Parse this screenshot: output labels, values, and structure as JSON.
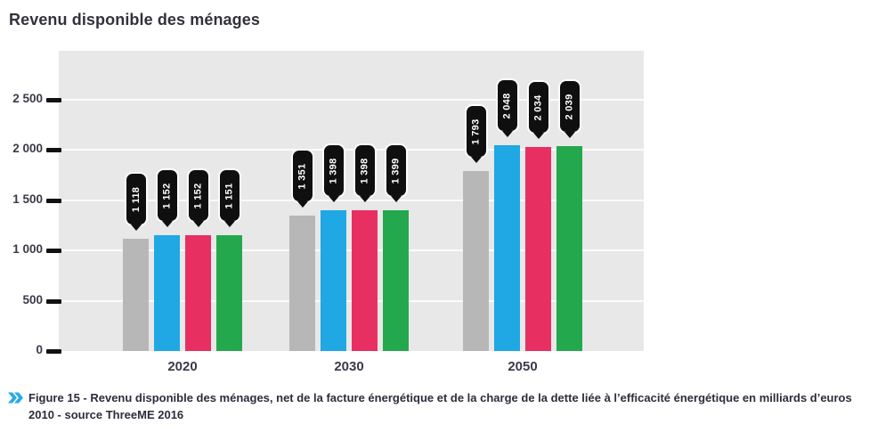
{
  "title": "Revenu disponible des ménages",
  "caption": {
    "text": "Figure 15 - Revenu disponible des ménages, net de la facture énergétique et de la charge de la dette liée à l’efficacité énergétique en milliards d’euros 2010 - source ThreeME 2016",
    "icon": "double-arrow-icon",
    "icon_color": "#29abe2"
  },
  "colors": {
    "plot_background": "#e8e8e8",
    "gridline": "#f5f5f5",
    "axis_tick": "#111111",
    "text": "#33333f",
    "callout_background": "#0f0f0f",
    "callout_text": "#ffffff"
  },
  "chart_data": {
    "type": "bar",
    "title": "Revenu disponible des ménages",
    "categories": [
      "2020",
      "2030",
      "2050"
    ],
    "series": [
      {
        "name": "scenario-gray",
        "color": "#b7b7b7",
        "values": [
          1118,
          1351,
          1793
        ],
        "labels": [
          "1 118",
          "1 351",
          "1 793"
        ]
      },
      {
        "name": "scenario-blue",
        "color": "#1fa8e4",
        "values": [
          1152,
          1398,
          2048
        ],
        "labels": [
          "1 152",
          "1 398",
          "2 048"
        ]
      },
      {
        "name": "scenario-pink",
        "color": "#e82f62",
        "values": [
          1152,
          1398,
          2034
        ],
        "labels": [
          "1 152",
          "1 398",
          "2 034"
        ]
      },
      {
        "name": "scenario-green",
        "color": "#24a84d",
        "values": [
          1151,
          1399,
          2039
        ],
        "labels": [
          "1 151",
          "1 399",
          "2 039"
        ]
      }
    ],
    "y_ticks": [
      {
        "label": "2 500",
        "value": 2500
      },
      {
        "label": "2 000",
        "value": 2000
      },
      {
        "label": "1 500",
        "value": 1500
      },
      {
        "label": "1 000",
        "value": 1000
      },
      {
        "label": "500",
        "value": 500
      },
      {
        "label": "0",
        "value": 0
      }
    ],
    "ylim": [
      0,
      2988
    ],
    "xlabel": "",
    "ylabel": "",
    "grid": true,
    "legend": "none"
  }
}
